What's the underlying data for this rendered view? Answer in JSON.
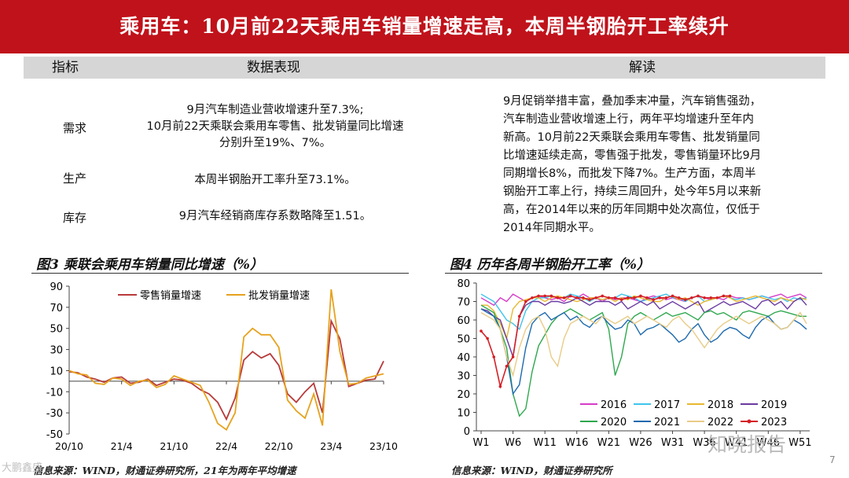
{
  "title": "乘用车：10月前22天乘用车销量增速走高，本周半钢胎开工率续升",
  "table": {
    "headers": [
      "指标",
      "数据表现",
      "解读"
    ],
    "rows": [
      {
        "label": "需求",
        "lines": [
          "9月汽车制造业营收增速升至7.3%;",
          "10月前22天乘联会乘用车零售、批发销量同比增速",
          "分别升至19%、7%。"
        ]
      },
      {
        "label": "生产",
        "lines": [
          "本周半钢胎开工率升至73.1%。"
        ]
      },
      {
        "label": "库存",
        "lines": [
          "9月汽车经销商库存系数略降至1.51。"
        ]
      }
    ],
    "interpretation_lines": [
      "9月促销举措丰富，叠加季末冲量，汽车销售强劲，",
      "汽车制造业营收增速上行，两年平均增速升至年内",
      "新高。10月前22天乘联会乘用车零售、批发销量同",
      "比增速延续走高，零售强于批发，零售销量环比9月",
      "同期增长8%，而批发下降7%。生产方面，本周半",
      "钢胎开工率上行，持续三周回升，处今年5月以来新",
      "高，在2014年以来的历年同期中处次高位，仅低于",
      "2014年同期水平。"
    ]
  },
  "fig3": {
    "title": "图3  乘联会乘用车销量同比增速（%）",
    "source": "信息来源：WIND，财通证券研究所，21年为两年平均增速"
  },
  "fig4": {
    "title": "图4  历年各周半钢胎开工率（%）",
    "source": "信息来源：WIND，财通证券研究所"
  },
  "watermark": "知晓报告",
  "watermark2": "大鹏鑫盛",
  "page_number": "7",
  "chart_data": [
    {
      "type": "line",
      "categories": [
        "20/10",
        "20/11",
        "20/12",
        "21/1",
        "21/2",
        "21/3",
        "21/4",
        "21/5",
        "21/6",
        "21/7",
        "21/8",
        "21/9",
        "21/10",
        "21/11",
        "21/12",
        "22/1",
        "22/2",
        "22/3",
        "22/4",
        "22/5",
        "22/6",
        "22/7",
        "22/8",
        "22/9",
        "22/10",
        "22/11",
        "22/12",
        "23/1",
        "23/2",
        "23/3",
        "23/4",
        "23/5",
        "23/6",
        "23/7",
        "23/8",
        "23/9",
        "23/10"
      ],
      "tick_labels": [
        "20/10",
        "21/4",
        "21/10",
        "22/4",
        "22/10",
        "23/4",
        "23/10"
      ],
      "tick_index": [
        0,
        6,
        12,
        18,
        24,
        30,
        36
      ],
      "series": [
        {
          "name": "零售销量增速",
          "color": "#b83a3a",
          "values": [
            9,
            8,
            4,
            2,
            -1,
            3,
            4,
            -2,
            -1,
            2,
            -4,
            -1,
            2,
            1,
            -2,
            -8,
            -12,
            -20,
            -36,
            -16,
            20,
            28,
            22,
            26,
            15,
            -12,
            -20,
            -10,
            -2,
            -30,
            57,
            40,
            -5,
            -2,
            1,
            2,
            19
          ]
        },
        {
          "name": "批发销量增速",
          "color": "#e6a21e",
          "values": [
            10,
            7,
            6,
            -2,
            -3,
            3,
            2,
            -4,
            0,
            1,
            -6,
            -3,
            5,
            2,
            -1,
            -4,
            -20,
            -40,
            -46,
            -30,
            42,
            50,
            44,
            44,
            32,
            -18,
            -28,
            -35,
            -12,
            -42,
            87,
            28,
            -3,
            -2,
            3,
            5,
            7
          ]
        }
      ],
      "ylim": [
        -50,
        90
      ],
      "yticks": [
        -50,
        -30,
        -10,
        10,
        30,
        50,
        70,
        90
      ],
      "legend": "top"
    },
    {
      "type": "line",
      "x_labels": [
        "W1",
        "W6",
        "W11",
        "W16",
        "W21",
        "W26",
        "W31",
        "W36",
        "W41",
        "W46",
        "W51"
      ],
      "ylim": [
        0,
        80
      ],
      "yticks": [
        0,
        10,
        20,
        30,
        40,
        50,
        60,
        70,
        80
      ],
      "legend": "bottom-right",
      "series": [
        {
          "name": "2016",
          "color": "#d63cc8",
          "values": [
            72,
            70,
            68,
            72,
            70,
            74,
            72,
            70,
            72,
            73,
            72,
            71,
            72,
            70,
            73,
            72,
            74,
            72,
            72,
            70,
            72,
            71,
            72,
            72,
            71,
            70,
            72,
            73,
            72,
            71,
            72,
            71,
            70,
            72,
            73,
            72,
            71,
            72,
            71,
            73,
            72,
            72,
            71,
            72,
            73,
            72,
            73,
            74,
            72,
            73,
            74,
            72
          ]
        },
        {
          "name": "2017",
          "color": "#3ec4ea",
          "values": [
            74,
            72,
            70,
            65,
            60,
            58,
            55,
            65,
            70,
            72,
            72,
            73,
            72,
            72,
            74,
            73,
            72,
            70,
            72,
            71,
            72,
            72,
            74,
            73,
            72,
            70,
            71,
            72,
            73,
            74,
            72,
            72,
            70,
            72,
            73,
            70,
            71,
            72,
            73,
            72,
            71,
            72,
            71,
            72,
            73,
            72,
            71,
            72,
            70,
            72,
            71,
            72
          ]
        },
        {
          "name": "2018",
          "color": "#e8b830",
          "values": [
            68,
            68,
            65,
            58,
            50,
            66,
            70,
            71,
            72,
            72,
            70,
            72,
            73,
            72,
            71,
            70,
            71,
            72,
            72,
            71,
            72,
            70,
            72,
            71,
            73,
            72,
            71,
            70,
            70,
            72,
            73,
            71,
            72,
            70,
            68,
            70,
            71,
            72,
            73,
            72,
            70,
            71,
            72,
            73,
            72,
            71,
            70,
            72,
            71,
            70,
            72,
            71
          ]
        },
        {
          "name": "2019",
          "color": "#6a3aa0",
          "values": [
            66,
            65,
            62,
            60,
            50,
            40,
            62,
            68,
            70,
            70,
            68,
            70,
            70,
            69,
            70,
            72,
            70,
            68,
            70,
            70,
            70,
            68,
            70,
            66,
            68,
            70,
            68,
            70,
            66,
            68,
            70,
            68,
            66,
            68,
            70,
            64,
            66,
            68,
            70,
            68,
            69,
            70,
            68,
            66,
            70,
            71,
            68,
            70,
            66,
            70,
            72,
            68
          ]
        },
        {
          "name": "2020",
          "color": "#2fa84f",
          "values": [
            68,
            66,
            64,
            55,
            45,
            20,
            8,
            12,
            32,
            46,
            52,
            58,
            62,
            64,
            66,
            64,
            62,
            60,
            62,
            64,
            55,
            30,
            40,
            58,
            62,
            64,
            62,
            60,
            62,
            64,
            62,
            63,
            64,
            62,
            60,
            64,
            65,
            63,
            64,
            62,
            60,
            64,
            65,
            64,
            63,
            62,
            64,
            65,
            64,
            63,
            62,
            62
          ]
        },
        {
          "name": "2021",
          "color": "#1e6aae",
          "values": [
            66,
            64,
            62,
            55,
            40,
            20,
            25,
            45,
            58,
            62,
            64,
            60,
            62,
            64,
            60,
            62,
            58,
            56,
            60,
            62,
            58,
            55,
            56,
            60,
            58,
            52,
            55,
            56,
            58,
            55,
            52,
            48,
            50,
            55,
            58,
            52,
            48,
            50,
            54,
            56,
            55,
            52,
            50,
            56,
            60,
            62,
            58,
            55,
            56,
            60,
            58,
            55
          ]
        },
        {
          "name": "2022",
          "color": "#e8cc86",
          "values": [
            64,
            62,
            60,
            55,
            40,
            30,
            45,
            55,
            60,
            62,
            55,
            40,
            35,
            50,
            58,
            60,
            62,
            60,
            58,
            62,
            60,
            58,
            60,
            62,
            58,
            60,
            62,
            60,
            58,
            56,
            60,
            62,
            58,
            55,
            50,
            45,
            50,
            55,
            58,
            60,
            62,
            60,
            58,
            60,
            62,
            60,
            58,
            55,
            56,
            60,
            64,
            58
          ]
        },
        {
          "name": "2023",
          "color": "#d41f25",
          "marker": true,
          "values": [
            54,
            50,
            40,
            24,
            35,
            40,
            62,
            70,
            72,
            73,
            73,
            73,
            72,
            72,
            73,
            72,
            72,
            71,
            72,
            73,
            72,
            72,
            71,
            72,
            72,
            73,
            72,
            71,
            72,
            72,
            73,
            72,
            71,
            72,
            73,
            72,
            72,
            72,
            73,
            73
          ]
        }
      ]
    }
  ]
}
